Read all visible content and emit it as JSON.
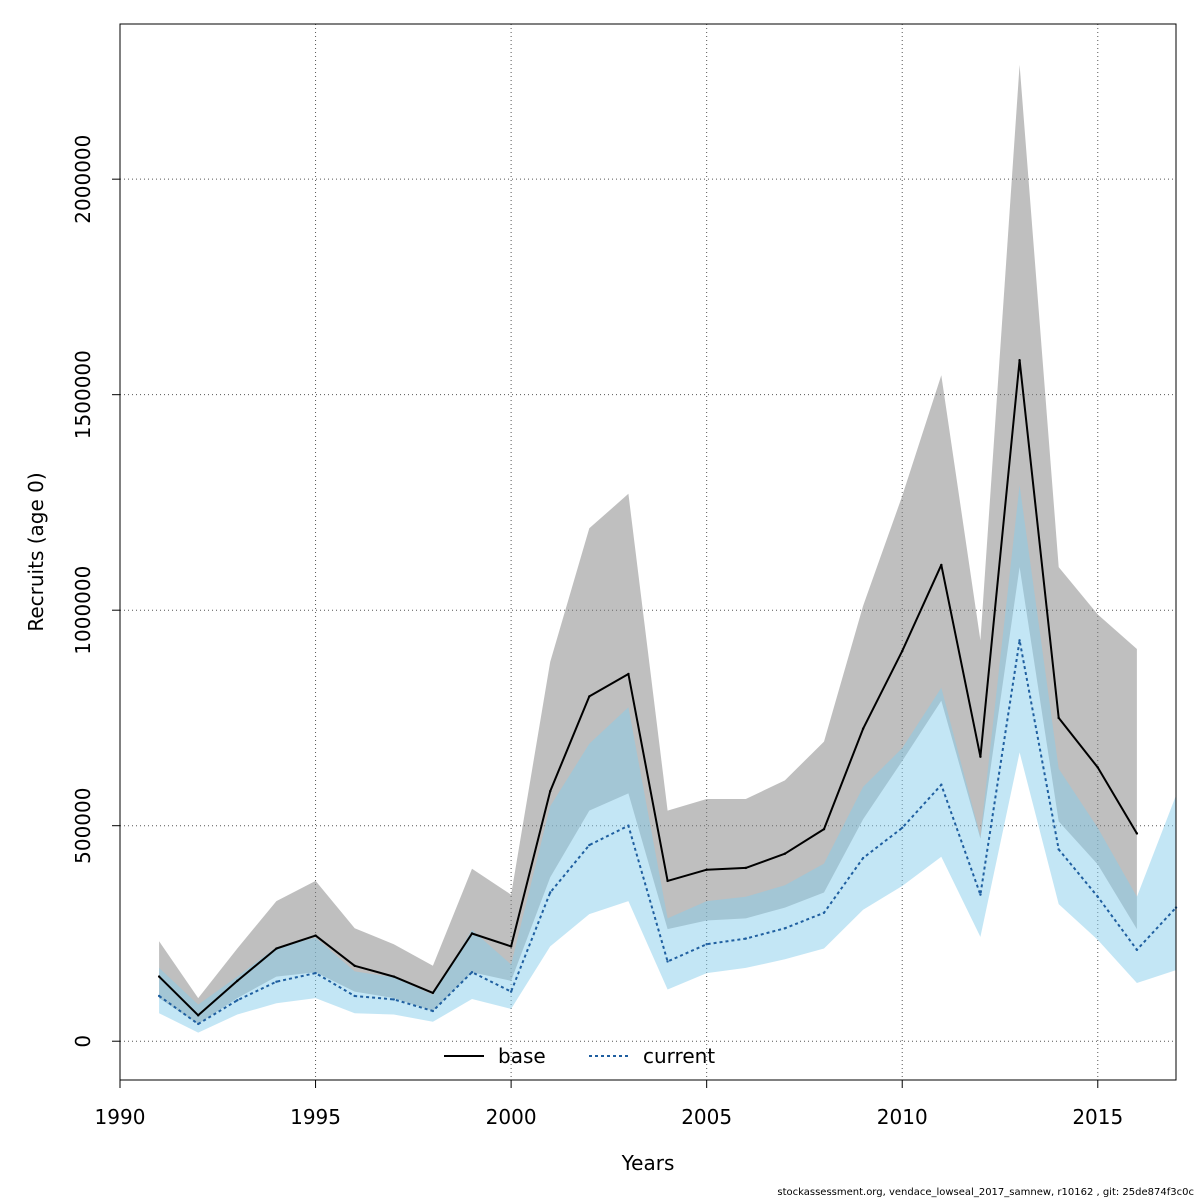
{
  "chart_data": {
    "type": "line",
    "xlabel": "Years",
    "ylabel": "Recruits (age 0)",
    "xlim": [
      1990,
      2017
    ],
    "ylim": [
      -90000,
      2360000
    ],
    "xticks": [
      1990,
      1995,
      2000,
      2005,
      2010,
      2015
    ],
    "yticks": [
      0,
      500000,
      1000000,
      1500000,
      2000000
    ],
    "ytick_labels": [
      "0",
      "500000",
      "1000000",
      "1500000",
      "2000000"
    ],
    "grid": true,
    "legend_position": "bottom-center",
    "series": [
      {
        "name": "base",
        "line_color": "#000000",
        "band_color": "#808080",
        "line_style": "solid",
        "x": [
          1991,
          1992,
          1993,
          1994,
          1995,
          1996,
          1997,
          1998,
          1999,
          2000,
          2001,
          2002,
          2003,
          2004,
          2005,
          2006,
          2007,
          2008,
          2009,
          2010,
          2011,
          2012,
          2013,
          2014,
          2015,
          2016
        ],
        "values": [
          150000,
          60000,
          140000,
          215000,
          245000,
          175000,
          150000,
          112000,
          250000,
          220000,
          580000,
          800000,
          852000,
          372000,
          398000,
          402000,
          435000,
          492000,
          725000,
          905000,
          1105000,
          660000,
          1580000,
          750000,
          635000,
          482000
        ],
        "lower": [
          100000,
          40000,
          100000,
          150000,
          160000,
          115000,
          100000,
          70000,
          160000,
          140000,
          380000,
          535000,
          575000,
          260000,
          280000,
          285000,
          310000,
          345000,
          515000,
          650000,
          790000,
          470000,
          1100000,
          510000,
          410000,
          260000
        ],
        "upper": [
          232000,
          100000,
          215000,
          325000,
          372000,
          262000,
          225000,
          175000,
          400000,
          340000,
          880000,
          1190000,
          1270000,
          535000,
          562000,
          562000,
          605000,
          695000,
          1010000,
          1265000,
          1545000,
          930000,
          2265000,
          1100000,
          990000,
          910000
        ]
      },
      {
        "name": "current",
        "line_color": "#1f5fa0",
        "band_color": "#87ceeb",
        "line_style": "dotted",
        "x": [
          1991,
          1992,
          1993,
          1994,
          1995,
          1996,
          1997,
          1998,
          1999,
          2000,
          2001,
          2002,
          2003,
          2004,
          2005,
          2006,
          2007,
          2008,
          2009,
          2010,
          2011,
          2012,
          2013,
          2014,
          2015,
          2016,
          2017
        ],
        "values": [
          105000,
          40000,
          95000,
          138000,
          158000,
          105000,
          97000,
          70000,
          160000,
          115000,
          345000,
          455000,
          500000,
          185000,
          225000,
          238000,
          262000,
          298000,
          425000,
          495000,
          595000,
          340000,
          930000,
          445000,
          335000,
          212000,
          310000
        ],
        "lower": [
          65000,
          20000,
          62000,
          88000,
          100000,
          65000,
          62000,
          45000,
          98000,
          75000,
          220000,
          295000,
          325000,
          120000,
          158000,
          170000,
          190000,
          215000,
          305000,
          360000,
          428000,
          242000,
          670000,
          318000,
          235000,
          135000,
          165000
        ],
        "upper": [
          170000,
          85000,
          150000,
          218000,
          240000,
          162000,
          148000,
          108000,
          258000,
          178000,
          545000,
          690000,
          775000,
          285000,
          325000,
          335000,
          362000,
          412000,
          590000,
          680000,
          820000,
          475000,
          1290000,
          632000,
          495000,
          335000,
          570000
        ]
      }
    ]
  },
  "footer_text": "stockassessment.org, vendace_lowseal_2017_samnew, r10162 , git: 25de874f3c0c"
}
